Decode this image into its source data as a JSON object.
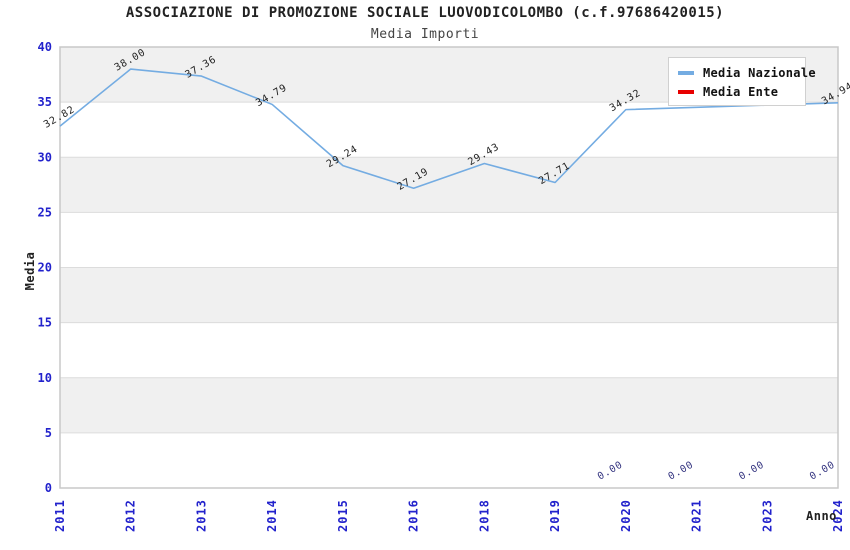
{
  "header": {
    "title": "ASSOCIAZIONE DI PROMOZIONE SOCIALE LUOVODICOLOMBO (c.f.97686420015)",
    "subtitle": "Media Importi"
  },
  "chart_data": {
    "type": "line",
    "title": "ASSOCIAZIONE DI PROMOZIONE SOCIALE LUOVODICOLOMBO (c.f.97686420015)",
    "subtitle": "Media Importi",
    "xlabel": "Anno",
    "ylabel": "Media",
    "ylim": [
      0,
      40
    ],
    "yticks": [
      0,
      5,
      10,
      15,
      20,
      25,
      30,
      35,
      40
    ],
    "grid": "horizontal-gridlines-with-alternating-gray-bands",
    "legend_position": "top-right",
    "categories": [
      "2011",
      "2012",
      "2013",
      "2014",
      "2015",
      "2016",
      "2018",
      "2019",
      "2020",
      "2021",
      "2023",
      "2024"
    ],
    "series": [
      {
        "name": "Media Nazionale",
        "color": "#74ace2",
        "label_color": "#222222",
        "values": [
          32.82,
          38.0,
          37.36,
          34.79,
          29.24,
          27.19,
          29.43,
          27.71,
          34.32,
          34.53,
          34.73,
          34.94
        ],
        "point_labels": [
          "32.82",
          "38.00",
          "37.36",
          "34.79",
          "29.24",
          "27.19",
          "29.43",
          "27.71",
          "34.32",
          "",
          "",
          "34.94"
        ]
      },
      {
        "name": "Media Ente",
        "color": "#e80000",
        "label_color": "#33337f",
        "values": [
          null,
          null,
          null,
          null,
          null,
          null,
          null,
          null,
          0,
          0,
          0,
          0
        ],
        "point_labels": [
          "",
          "",
          "",
          "",
          "",
          "",
          "",
          "",
          "0.00",
          "0.00",
          "0.00",
          "0.00"
        ]
      }
    ],
    "colors": {
      "axis_text": "#2222cc",
      "band_gray": "#f0f0f0",
      "grid_line": "#dcdcdc",
      "frame": "#c8c8c8",
      "plot_bg": "#ffffff"
    }
  }
}
